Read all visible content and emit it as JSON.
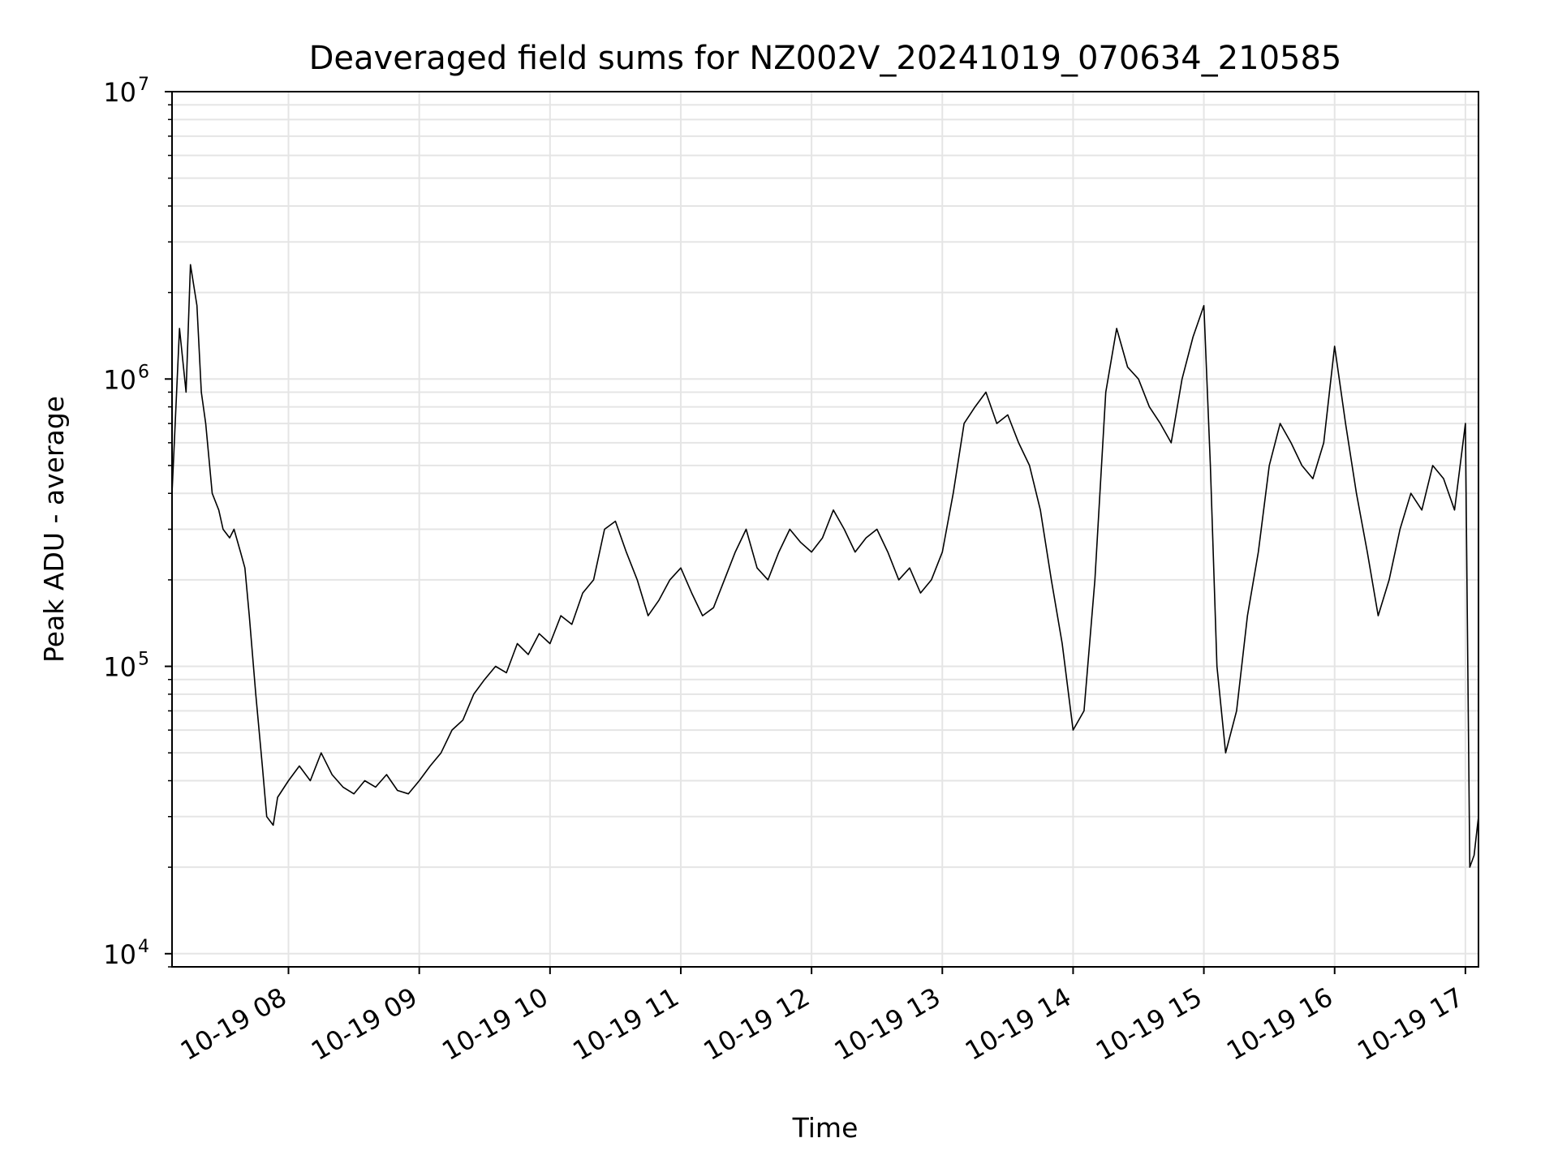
{
  "chart_data": {
    "type": "line",
    "title": "Deaveraged field sums for NZ002V_20241019_070634_210585",
    "xlabel": "Time",
    "ylabel": "Peak ADU - average",
    "y_scale": "log",
    "ylim": [
      9000,
      10000000
    ],
    "xlim": [
      "2024-10-19 07:06:34",
      "2024-10-19 17:06:00"
    ],
    "grid": true,
    "line_color": "#000000",
    "grid_color": "#e5e5e5",
    "x_ticks": [
      {
        "value": "2024-10-19 08:00",
        "label": "10-19 08"
      },
      {
        "value": "2024-10-19 09:00",
        "label": "10-19 09"
      },
      {
        "value": "2024-10-19 10:00",
        "label": "10-19 10"
      },
      {
        "value": "2024-10-19 11:00",
        "label": "10-19 11"
      },
      {
        "value": "2024-10-19 12:00",
        "label": "10-19 12"
      },
      {
        "value": "2024-10-19 13:00",
        "label": "10-19 13"
      },
      {
        "value": "2024-10-19 14:00",
        "label": "10-19 14"
      },
      {
        "value": "2024-10-19 15:00",
        "label": "10-19 15"
      },
      {
        "value": "2024-10-19 16:00",
        "label": "10-19 16"
      },
      {
        "value": "2024-10-19 17:00",
        "label": "10-19 17"
      }
    ],
    "y_ticks": [
      {
        "value": 10000,
        "base": "10",
        "exp": "4"
      },
      {
        "value": 100000,
        "base": "10",
        "exp": "5"
      },
      {
        "value": 1000000,
        "base": "10",
        "exp": "6"
      },
      {
        "value": 10000000,
        "base": "10",
        "exp": "7"
      }
    ],
    "series": [
      {
        "x": [
          "07:06",
          "07:10",
          "07:13",
          "07:15",
          "07:18",
          "07:20",
          "07:22",
          "07:25",
          "07:28",
          "07:30",
          "07:33",
          "07:35",
          "07:38",
          "07:40",
          "07:42",
          "07:45",
          "07:48",
          "07:50",
          "07:53",
          "07:55",
          "08:00",
          "08:05",
          "08:10",
          "08:15",
          "08:20",
          "08:25",
          "08:30",
          "08:35",
          "08:40",
          "08:45",
          "08:50",
          "08:55",
          "09:00",
          "09:05",
          "09:10",
          "09:15",
          "09:20",
          "09:25",
          "09:30",
          "09:35",
          "09:40",
          "09:45",
          "09:50",
          "09:55",
          "10:00",
          "10:05",
          "10:10",
          "10:15",
          "10:20",
          "10:25",
          "10:30",
          "10:35",
          "10:40",
          "10:45",
          "10:50",
          "10:55",
          "11:00",
          "11:05",
          "11:10",
          "11:15",
          "11:20",
          "11:25",
          "11:30",
          "11:35",
          "11:40",
          "11:45",
          "11:50",
          "11:55",
          "12:00",
          "12:05",
          "12:10",
          "12:15",
          "12:20",
          "12:25",
          "12:30",
          "12:35",
          "12:40",
          "12:45",
          "12:50",
          "12:55",
          "13:00",
          "13:05",
          "13:10",
          "13:15",
          "13:20",
          "13:25",
          "13:30",
          "13:35",
          "13:40",
          "13:45",
          "13:50",
          "13:55",
          "14:00",
          "14:05",
          "14:10",
          "14:15",
          "14:20",
          "14:25",
          "14:30",
          "14:35",
          "14:40",
          "14:45",
          "14:50",
          "14:55",
          "15:00",
          "15:03",
          "15:06",
          "15:10",
          "15:15",
          "15:20",
          "15:25",
          "15:30",
          "15:35",
          "15:40",
          "15:45",
          "15:50",
          "15:55",
          "16:00",
          "16:05",
          "16:10",
          "16:15",
          "16:20",
          "16:25",
          "16:30",
          "16:35",
          "16:40",
          "16:45",
          "16:50",
          "16:55",
          "17:00",
          "17:02",
          "17:04",
          "17:06"
        ],
        "y": [
          400000,
          1500000,
          900000,
          2500000,
          1800000,
          900000,
          700000,
          400000,
          350000,
          300000,
          280000,
          300000,
          250000,
          220000,
          150000,
          80000,
          45000,
          30000,
          28000,
          35000,
          40000,
          45000,
          40000,
          50000,
          42000,
          38000,
          36000,
          40000,
          38000,
          42000,
          37000,
          36000,
          40000,
          45000,
          50000,
          60000,
          65000,
          80000,
          90000,
          100000,
          95000,
          120000,
          110000,
          130000,
          120000,
          150000,
          140000,
          180000,
          200000,
          300000,
          320000,
          250000,
          200000,
          150000,
          170000,
          200000,
          220000,
          180000,
          150000,
          160000,
          200000,
          250000,
          300000,
          220000,
          200000,
          250000,
          300000,
          270000,
          250000,
          280000,
          350000,
          300000,
          250000,
          280000,
          300000,
          250000,
          200000,
          220000,
          180000,
          200000,
          250000,
          400000,
          700000,
          800000,
          900000,
          700000,
          750000,
          600000,
          500000,
          350000,
          200000,
          120000,
          60000,
          70000,
          200000,
          900000,
          1500000,
          1100000,
          1000000,
          800000,
          700000,
          600000,
          1000000,
          1400000,
          1800000,
          500000,
          100000,
          50000,
          70000,
          150000,
          250000,
          500000,
          700000,
          600000,
          500000,
          450000,
          600000,
          1300000,
          700000,
          400000,
          250000,
          150000,
          200000,
          300000,
          400000,
          350000,
          500000,
          450000,
          350000,
          700000,
          20000,
          22000,
          30000
        ]
      }
    ]
  }
}
